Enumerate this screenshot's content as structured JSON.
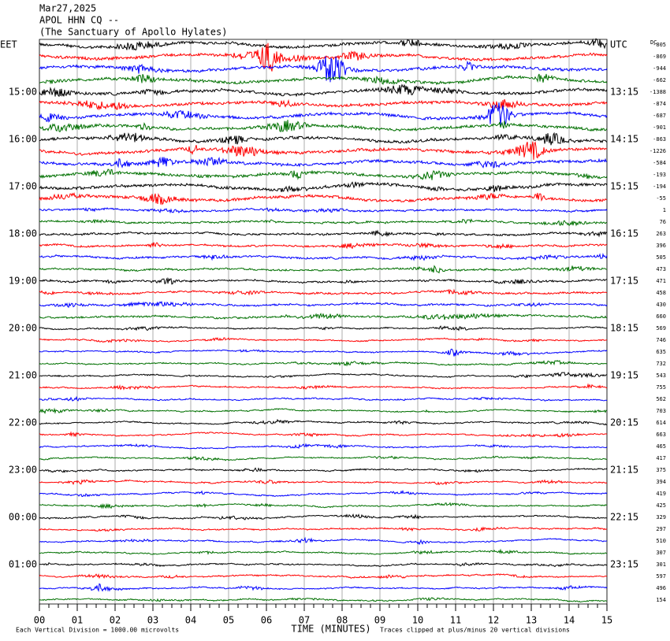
{
  "chart_data": {
    "type": "helicorder",
    "title_lines": [
      "Mar27,2025",
      "APOL HHN CQ --",
      "(The Sanctuary of Apollo Hylates)"
    ],
    "left_labels": [
      "EET",
      "15:00",
      "16:00",
      "17:00",
      "18:00",
      "19:00",
      "20:00",
      "21:00",
      "22:00",
      "23:00",
      "00:00",
      "01:00"
    ],
    "right_labels": [
      "UTC",
      "13:15",
      "14:15",
      "15:15",
      "16:15",
      "17:15",
      "18:15",
      "19:15",
      "20:15",
      "21:15",
      "22:15",
      "23:15"
    ],
    "dc_header": "DC",
    "dc_values": [
      -805,
      -869,
      -944,
      -662,
      -1388,
      -874,
      -687,
      -901,
      -863,
      -1226,
      -584,
      -193,
      -194,
      -55,
      1,
      76,
      263,
      396,
      505,
      473,
      471,
      458,
      430,
      660,
      569,
      746,
      635,
      732,
      543,
      755,
      562,
      703,
      614,
      663,
      465,
      417,
      375,
      394,
      419,
      425,
      329,
      297,
      510,
      307,
      301,
      597,
      496,
      154
    ],
    "trace_colors": [
      "#000000",
      "#ff0000",
      "#0000ff",
      "#007000"
    ],
    "xlim": [
      0,
      15
    ],
    "xticks": [
      {
        "value": 0,
        "label": "00"
      },
      {
        "value": 1,
        "label": "01"
      },
      {
        "value": 2,
        "label": "02"
      },
      {
        "value": 3,
        "label": "03"
      },
      {
        "value": 4,
        "label": "04"
      },
      {
        "value": 5,
        "label": "05"
      },
      {
        "value": 6,
        "label": "06"
      },
      {
        "value": 7,
        "label": "07"
      },
      {
        "value": 8,
        "label": "08"
      },
      {
        "value": 9,
        "label": "09"
      },
      10,
      11,
      12,
      13,
      14,
      15
    ],
    "x_label": "TIME (MINUTES)",
    "footer_left": "Each Vertical Division = 1000.00 microvolts",
    "footer_right": "Traces clipped at plus/minus 20 vertical divisions",
    "grid": true
  }
}
